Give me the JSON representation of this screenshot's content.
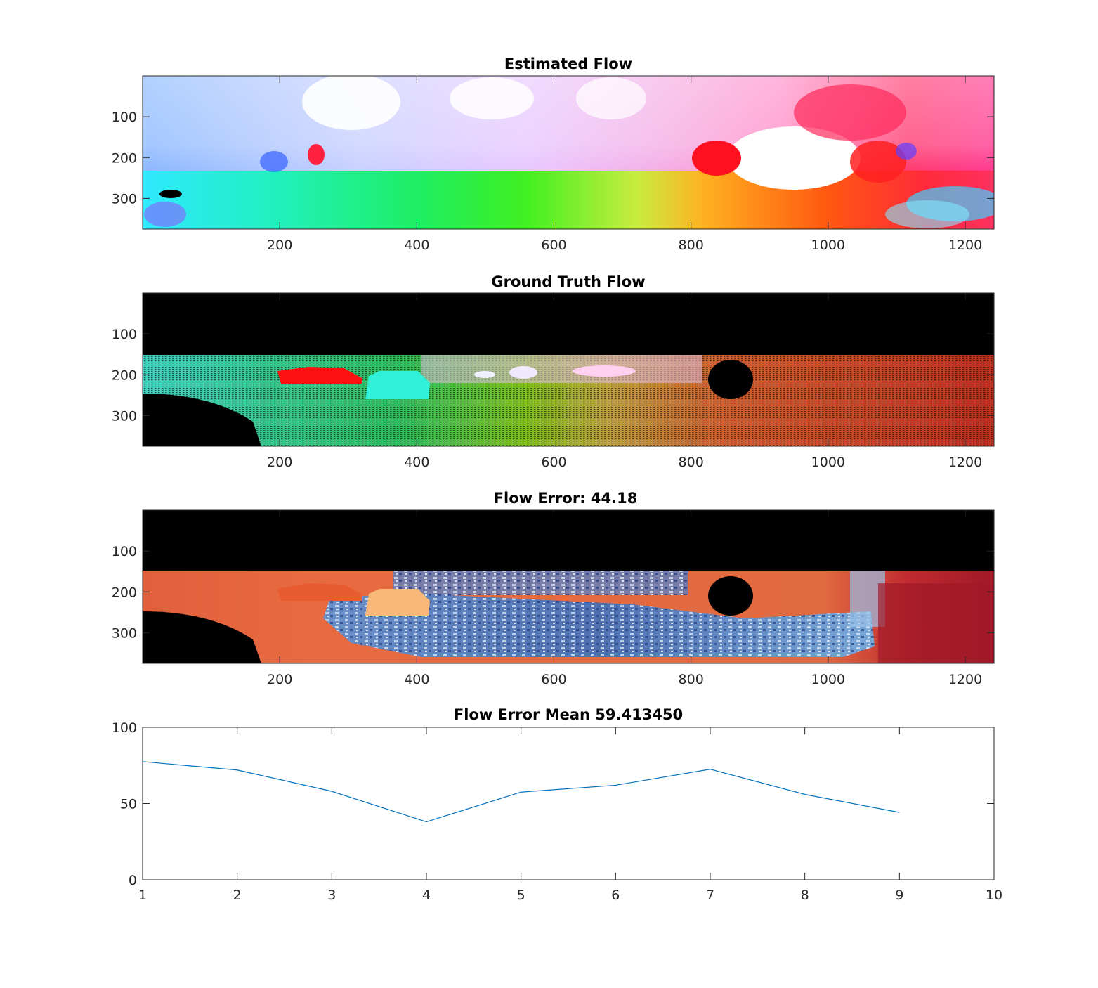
{
  "chart_data": [
    {
      "type": "heatmap",
      "title": "Estimated Flow",
      "xlim": [
        0,
        1242
      ],
      "ylim": [
        375,
        0
      ],
      "xticks": [
        200,
        400,
        600,
        800,
        1000,
        1200
      ],
      "yticks": [
        100,
        200,
        300
      ],
      "rendering": "optical-flow color wheel image (hue = direction, saturation = magnitude)"
    },
    {
      "type": "heatmap",
      "title": "Ground Truth Flow",
      "xlim": [
        0,
        1242
      ],
      "ylim": [
        375,
        0
      ],
      "xticks": [
        200,
        400,
        600,
        800,
        1000,
        1200
      ],
      "yticks": [
        100,
        200,
        300
      ],
      "rendering": "sparse optical-flow color image on black background"
    },
    {
      "type": "heatmap",
      "title": "Flow Error: 44.18",
      "xlim": [
        0,
        1242
      ],
      "ylim": [
        375,
        0
      ],
      "xticks": [
        200,
        400,
        600,
        800,
        1000,
        1200
      ],
      "yticks": [
        100,
        200,
        300
      ],
      "rendering": "error map (blue = low, red = high) on black background"
    },
    {
      "type": "line",
      "title": "Flow Error Mean 59.413450",
      "xlim": [
        1,
        10
      ],
      "ylim": [
        0,
        100
      ],
      "xticks": [
        1,
        2,
        3,
        4,
        5,
        6,
        7,
        8,
        9,
        10
      ],
      "yticks": [
        0,
        50,
        100
      ],
      "series": [
        {
          "color": "#0072bd",
          "x": [
            1,
            2,
            3,
            4,
            5,
            6,
            7,
            8,
            9
          ],
          "y": [
            77.5,
            72,
            58,
            38,
            57.5,
            62,
            72.5,
            56,
            44.18
          ]
        }
      ]
    }
  ]
}
